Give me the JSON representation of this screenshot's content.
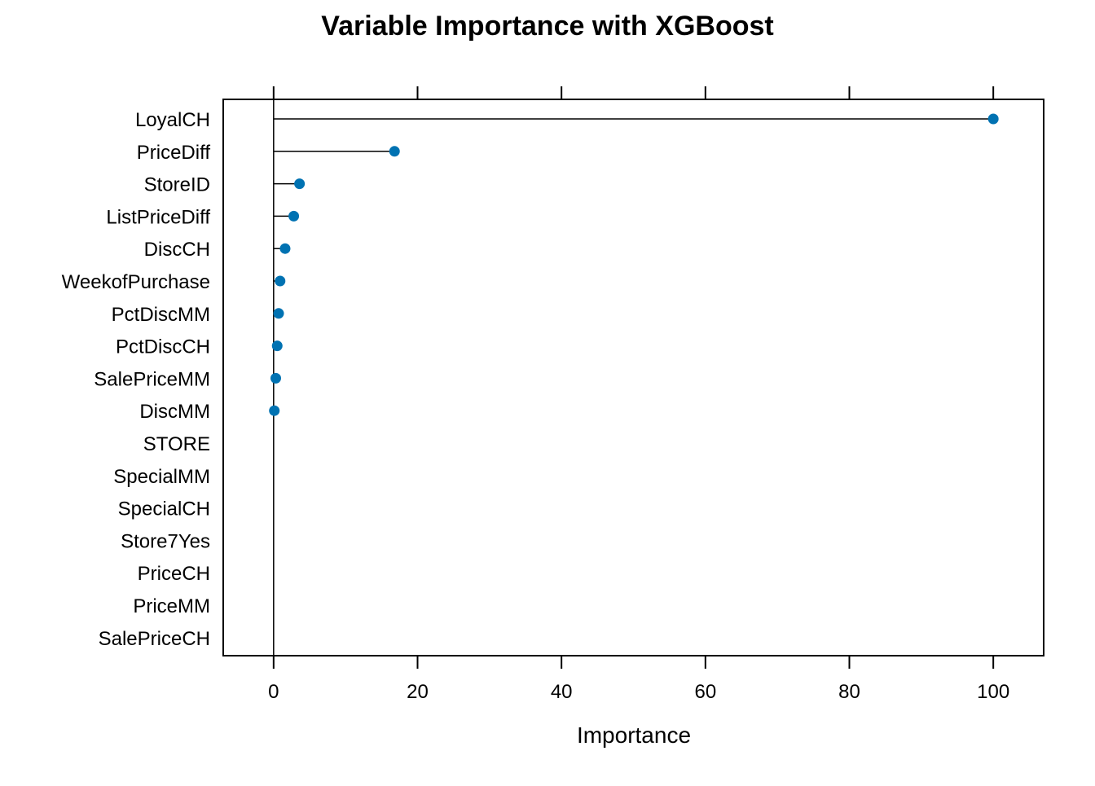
{
  "chart_data": {
    "type": "dotplot",
    "title": "Variable Importance with XGBoost",
    "xlabel": "Importance",
    "ylabel": "",
    "xlim": [
      -7,
      107
    ],
    "xticks": [
      0,
      20,
      40,
      60,
      80,
      100
    ],
    "grid": false,
    "legend": "none",
    "categories": [
      "LoyalCH",
      "PriceDiff",
      "StoreID",
      "ListPriceDiff",
      "DiscCH",
      "WeekofPurchase",
      "PctDiscMM",
      "PctDiscCH",
      "SalePriceMM",
      "DiscMM",
      "STORE",
      "SpecialMM",
      "SpecialCH",
      "Store7Yes",
      "PriceCH",
      "PriceMM",
      "SalePriceCH"
    ],
    "values": [
      100,
      16.8,
      3.6,
      2.8,
      1.6,
      0.9,
      0.7,
      0.5,
      0.3,
      0.1,
      null,
      null,
      null,
      null,
      null,
      null,
      null
    ],
    "point_color": "#0072B2",
    "line_color": "#000000"
  }
}
